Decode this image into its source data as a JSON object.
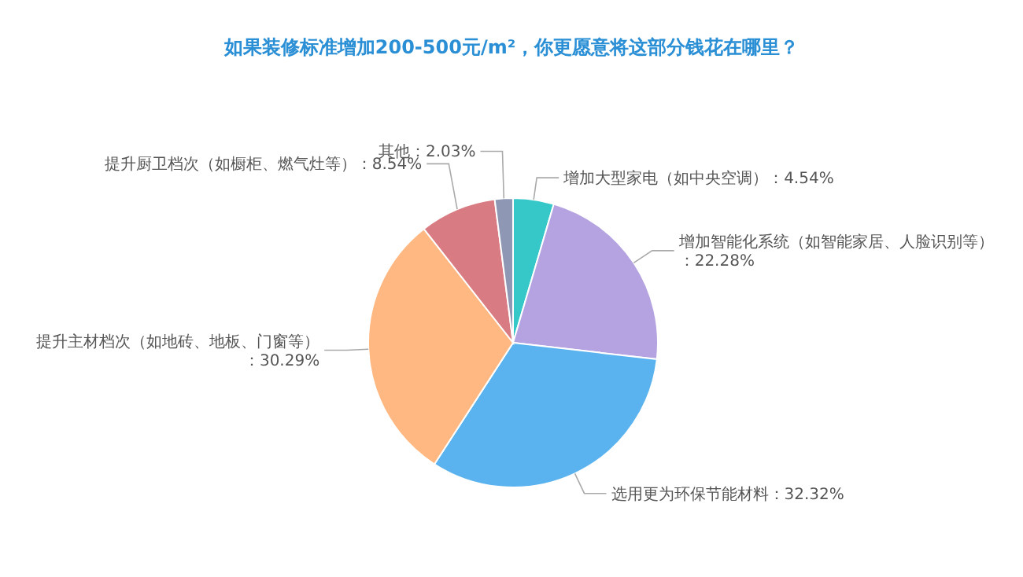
{
  "chart_data": {
    "type": "pie",
    "title": "如果装修标准增加200-500元/m²，你更愿意将这部分钱花在哪里？",
    "categories": [
      "增加大型家电（如中央空调）",
      "增加智能化系统（如智能家居、人脸识别等）",
      "选用更为环保节能材料",
      "提升主材档次（如地砖、地板、门窗等）",
      "提升厨卫档次（如橱柜、燃气灶等）",
      "其他"
    ],
    "values": [
      4.54,
      22.28,
      32.32,
      30.29,
      8.54,
      2.03
    ],
    "value_labels": [
      "：4.54%",
      "：22.28%",
      "：32.32%",
      "：30.29%",
      "：8.54%",
      "：2.03%"
    ],
    "colors": [
      "#36c7c9",
      "#b4a3e0",
      "#5ab3ee",
      "#ffb882",
      "#d97b82",
      "#8e98b4"
    ]
  }
}
